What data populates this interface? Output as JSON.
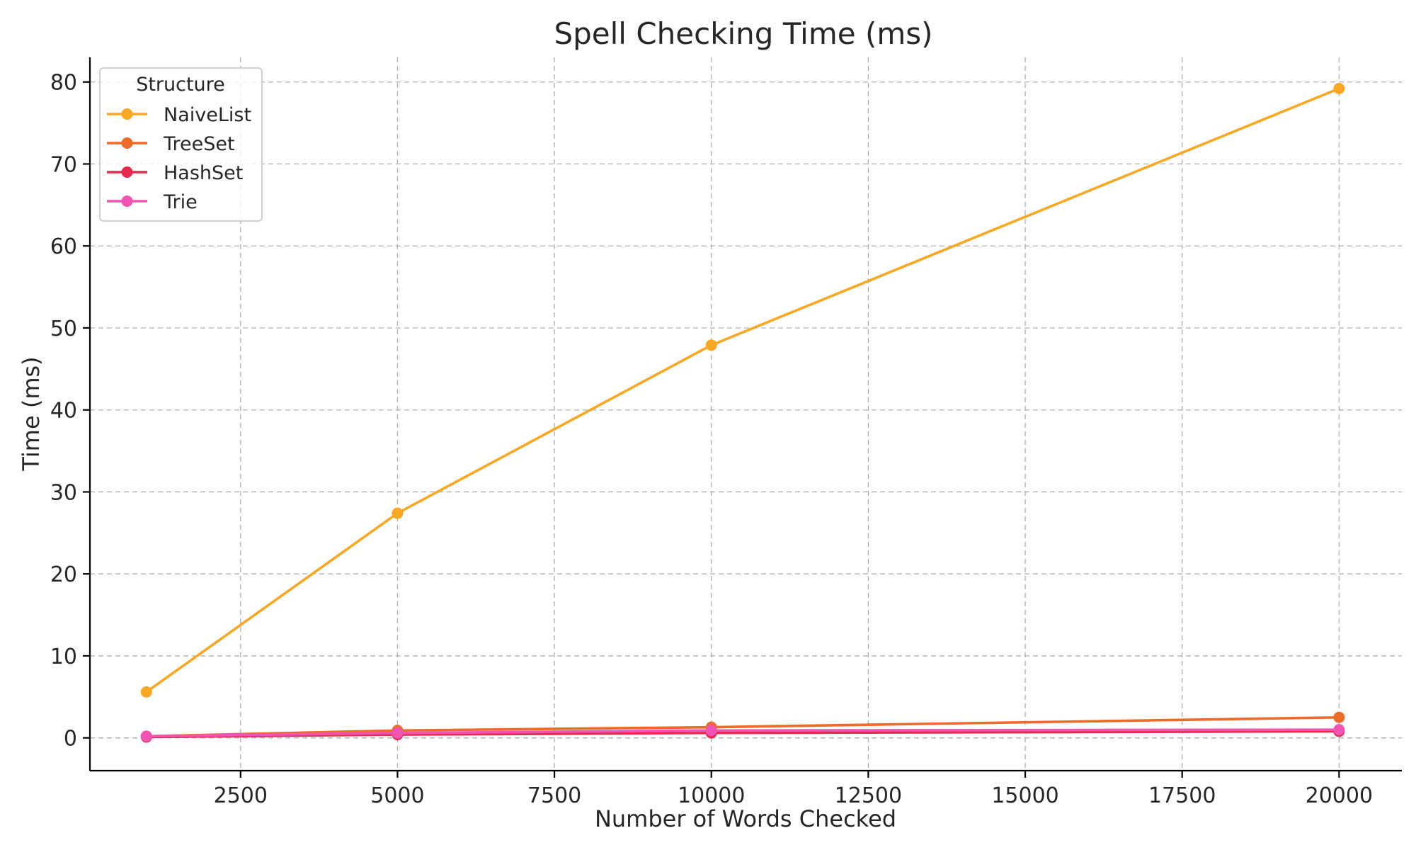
{
  "chart_data": {
    "type": "line",
    "title": "Spell Checking Time (ms)",
    "xlabel": "Number of Words Checked",
    "ylabel": "Time (ms)",
    "xlim": [
      100,
      21000
    ],
    "ylim": [
      -4,
      83
    ],
    "xticks": [
      2500,
      5000,
      7500,
      10000,
      12500,
      15000,
      17500,
      20000
    ],
    "yticks": [
      0,
      10,
      20,
      30,
      40,
      50,
      60,
      70,
      80
    ],
    "grid": true,
    "legend": {
      "title": "Structure",
      "placement": "top-left"
    },
    "x": [
      1000,
      5000,
      10000,
      20000
    ],
    "series": [
      {
        "name": "NaiveList",
        "color": "#f9a825",
        "values": [
          5.6,
          27.4,
          47.9,
          79.2
        ]
      },
      {
        "name": "TreeSet",
        "color": "#ed6a28",
        "values": [
          0.2,
          0.9,
          1.3,
          2.5
        ]
      },
      {
        "name": "HashSet",
        "color": "#e8294f",
        "values": [
          0.1,
          0.4,
          0.6,
          0.8
        ]
      },
      {
        "name": "Trie",
        "color": "#f055b4",
        "values": [
          0.2,
          0.6,
          0.9,
          1.0
        ]
      }
    ]
  }
}
